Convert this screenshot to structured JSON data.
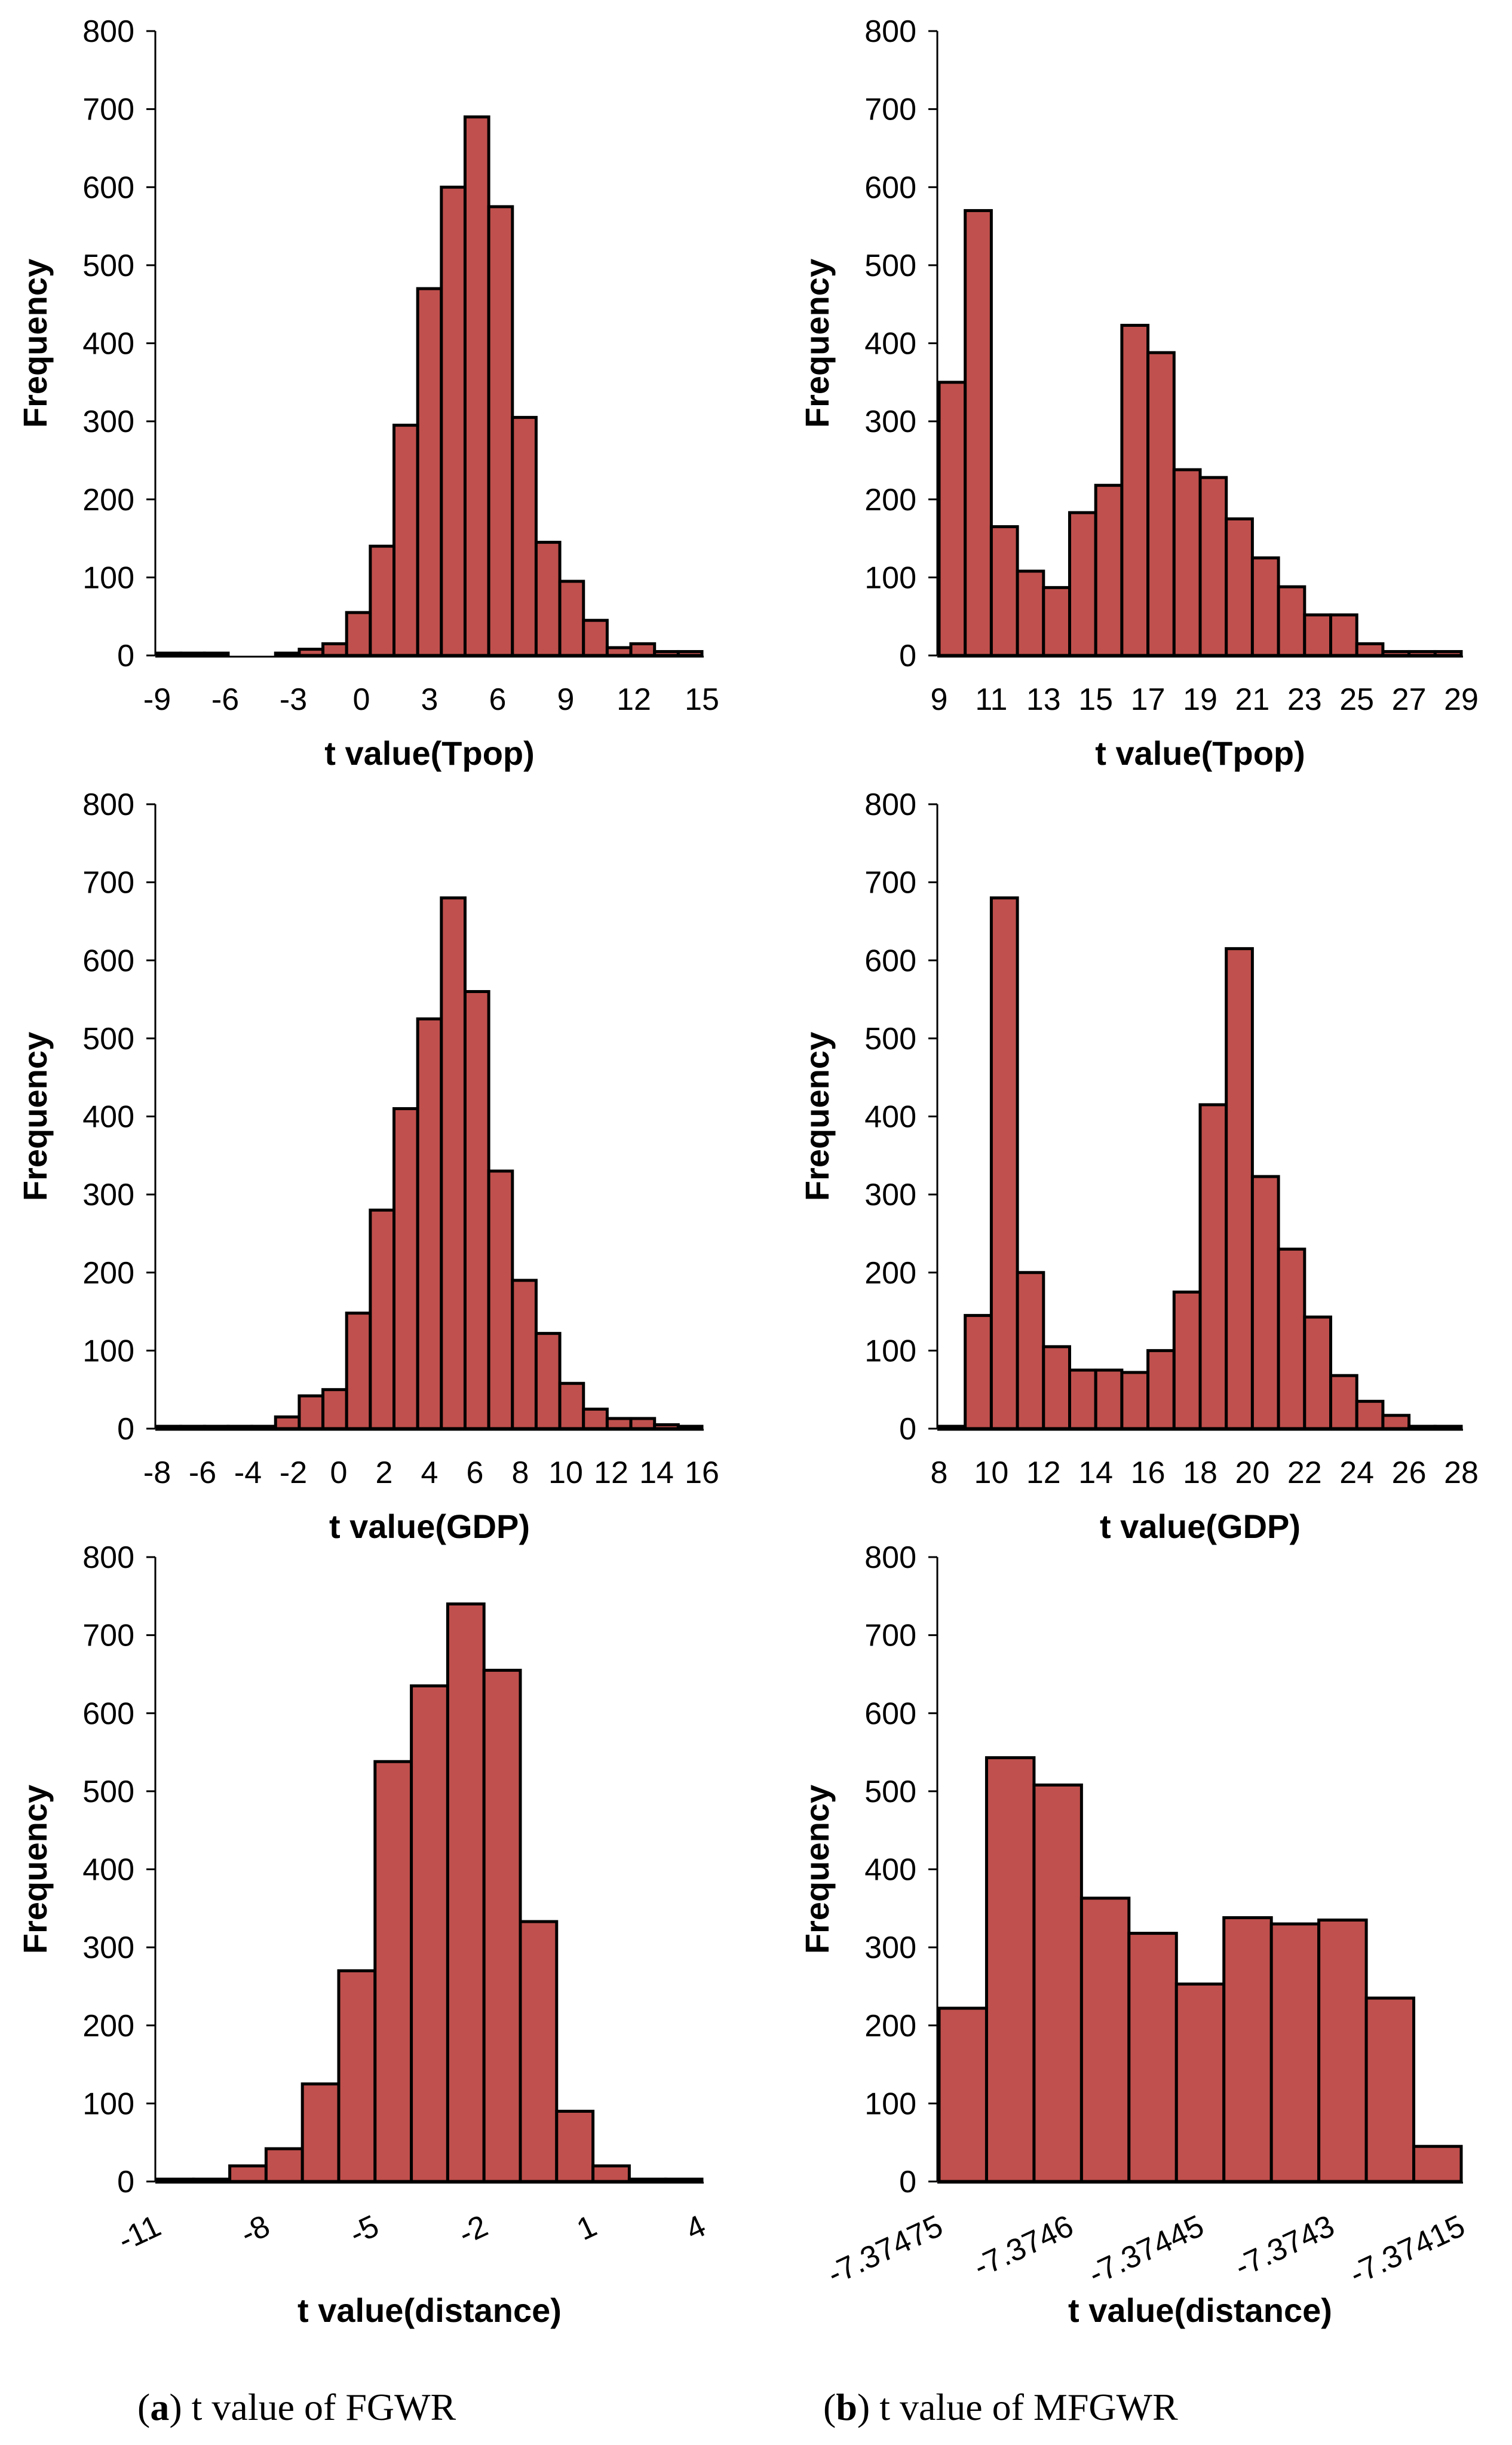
{
  "chart_data": [
    {
      "id": "a1",
      "type": "bar",
      "title": "",
      "xlabel": "t value(Tpop)",
      "ylabel": "Frequency",
      "ylim": [
        0,
        800
      ],
      "yticks": [
        0,
        100,
        200,
        300,
        400,
        500,
        600,
        700,
        800
      ],
      "xticks": [
        "-9",
        "-6",
        "-3",
        "0",
        "3",
        "6",
        "9",
        "12",
        "15"
      ],
      "xtick_rotated": false,
      "values": [
        3,
        3,
        3,
        0,
        0,
        3,
        8,
        15,
        55,
        140,
        295,
        470,
        600,
        690,
        575,
        305,
        145,
        95,
        45,
        10,
        15,
        5,
        5
      ]
    },
    {
      "id": "b1",
      "type": "bar",
      "title": "",
      "xlabel": "t value(Tpop)",
      "ylabel": "Frequency",
      "ylim": [
        0,
        800
      ],
      "yticks": [
        0,
        100,
        200,
        300,
        400,
        500,
        600,
        700,
        800
      ],
      "xticks": [
        "9",
        "11",
        "13",
        "15",
        "17",
        "19",
        "21",
        "23",
        "25",
        "27",
        "29"
      ],
      "xtick_rotated": false,
      "values": [
        350,
        570,
        165,
        108,
        87,
        183,
        218,
        423,
        388,
        238,
        228,
        175,
        125,
        88,
        52,
        52,
        15,
        5,
        5,
        5
      ]
    },
    {
      "id": "a2",
      "type": "bar",
      "title": "",
      "xlabel": "t value(GDP)",
      "ylabel": "Frequency",
      "ylim": [
        0,
        800
      ],
      "yticks": [
        0,
        100,
        200,
        300,
        400,
        500,
        600,
        700,
        800
      ],
      "xticks": [
        "-8",
        "-6",
        "-4",
        "-2",
        "0",
        "2",
        "4",
        "6",
        "8",
        "10",
        "12",
        "14",
        "16"
      ],
      "xtick_rotated": false,
      "values": [
        3,
        3,
        3,
        3,
        3,
        15,
        42,
        50,
        148,
        280,
        410,
        525,
        680,
        560,
        330,
        190,
        122,
        58,
        25,
        13,
        13,
        5,
        3
      ]
    },
    {
      "id": "b2",
      "type": "bar",
      "title": "",
      "xlabel": "t value(GDP)",
      "ylabel": "Frequency",
      "ylim": [
        0,
        800
      ],
      "yticks": [
        0,
        100,
        200,
        300,
        400,
        500,
        600,
        700,
        800
      ],
      "xticks": [
        "8",
        "10",
        "12",
        "14",
        "16",
        "18",
        "20",
        "22",
        "24",
        "26",
        "28"
      ],
      "xtick_rotated": false,
      "values": [
        3,
        145,
        680,
        200,
        105,
        75,
        75,
        72,
        100,
        175,
        415,
        615,
        323,
        230,
        143,
        68,
        35,
        17,
        3,
        3
      ]
    },
    {
      "id": "a3",
      "type": "bar",
      "title": "",
      "xlabel": "t value(distance)",
      "ylabel": "Frequency",
      "ylim": [
        0,
        800
      ],
      "yticks": [
        0,
        100,
        200,
        300,
        400,
        500,
        600,
        700,
        800
      ],
      "xticks": [
        "-11",
        "-8",
        "-5",
        "-2",
        "1",
        "4"
      ],
      "xtick_rotated": true,
      "values": [
        3,
        3,
        20,
        42,
        125,
        270,
        538,
        635,
        740,
        655,
        333,
        90,
        20,
        3,
        3
      ]
    },
    {
      "id": "b3",
      "type": "bar",
      "title": "",
      "xlabel": "t value(distance)",
      "ylabel": "Frequency",
      "ylim": [
        0,
        800
      ],
      "yticks": [
        0,
        100,
        200,
        300,
        400,
        500,
        600,
        700,
        800
      ],
      "xticks": [
        "-7.37475",
        "-7.3746",
        "-7.37445",
        "-7.3743",
        "-7.37415"
      ],
      "xtick_rotated": true,
      "values": [
        222,
        543,
        508,
        363,
        318,
        253,
        338,
        330,
        335,
        235,
        45
      ]
    }
  ],
  "captions": [
    {
      "id": "a",
      "letter": "a",
      "text": ") t value of FGWR"
    },
    {
      "id": "b",
      "letter": "b",
      "text": ") t value of MFGWR"
    }
  ],
  "colors": {
    "bar_fill": "#c0504d",
    "bar_stroke": "#000000"
  }
}
